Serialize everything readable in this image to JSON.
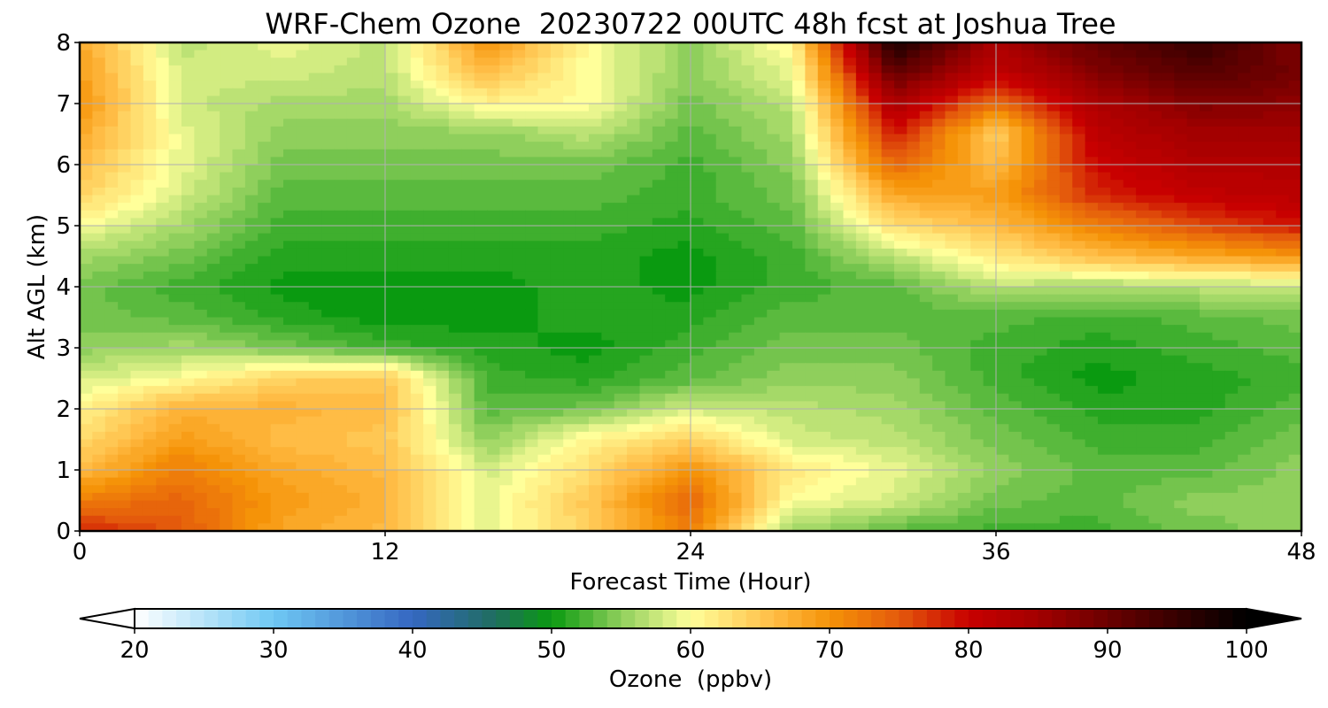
{
  "chart_data": {
    "type": "heatmap",
    "title": "WRF-Chem Ozone  20230722 00UTC 48h fcst at Joshua Tree",
    "xlabel": "Forecast Time (Hour)",
    "ylabel": "Alt AGL (km)",
    "xlim": [
      0,
      48
    ],
    "ylim": [
      0,
      8
    ],
    "xticks": [
      "0",
      "12",
      "24",
      "36",
      "48"
    ],
    "yticks": [
      "0",
      "1",
      "2",
      "3",
      "4",
      "5",
      "6",
      "7",
      "8"
    ],
    "grid": true,
    "x_hours": [
      0,
      4,
      8,
      12,
      16,
      20,
      24,
      28,
      32,
      36,
      40,
      44,
      48
    ],
    "y_km": [
      0,
      0.5,
      1,
      1.5,
      2,
      2.5,
      3,
      3.5,
      4,
      4.5,
      5,
      5.5,
      6,
      6.5,
      7,
      7.5,
      8
    ],
    "ozone_ppbv": [
      [
        78,
        75,
        68,
        66,
        59,
        64,
        72,
        56,
        53,
        52,
        52,
        54,
        55
      ],
      [
        72,
        74,
        69,
        67,
        59,
        65,
        74,
        60,
        58,
        54,
        53,
        55,
        55
      ],
      [
        66,
        72,
        68,
        66,
        58,
        63,
        70,
        62,
        59,
        55,
        53,
        53,
        55
      ],
      [
        63,
        69,
        66,
        65,
        55,
        61,
        64,
        58,
        57,
        54,
        52,
        52,
        54
      ],
      [
        61,
        67,
        67,
        66,
        53,
        54,
        58,
        57,
        56,
        53,
        51,
        51,
        53
      ],
      [
        58,
        60,
        64,
        65,
        52,
        51,
        53,
        55,
        55,
        52,
        50,
        51,
        52
      ],
      [
        55,
        56,
        54,
        52,
        51,
        50,
        52,
        54,
        54,
        52,
        51,
        52,
        53
      ],
      [
        54,
        53,
        51,
        50,
        50,
        51,
        51,
        53,
        53,
        53,
        52,
        53,
        54
      ],
      [
        54,
        52,
        50,
        50,
        50,
        51,
        50,
        52,
        53,
        57,
        56,
        57,
        57
      ],
      [
        56,
        54,
        51,
        51,
        51,
        51,
        50,
        52,
        57,
        62,
        66,
        68,
        70
      ],
      [
        60,
        56,
        52,
        52,
        52,
        52,
        51,
        53,
        63,
        66,
        72,
        76,
        79
      ],
      [
        64,
        58,
        53,
        53,
        53,
        53,
        52,
        54,
        68,
        69,
        78,
        81,
        82
      ],
      [
        66,
        59,
        54,
        54,
        54,
        54,
        52,
        55,
        74,
        66,
        80,
        83,
        83
      ],
      [
        68,
        59,
        55,
        55,
        55,
        57,
        53,
        56,
        79,
        64,
        82,
        85,
        85
      ],
      [
        70,
        58,
        56,
        56,
        61,
        60,
        54,
        57,
        84,
        73,
        84,
        88,
        87
      ],
      [
        69,
        58,
        58,
        57,
        66,
        60,
        55,
        59,
        91,
        81,
        88,
        92,
        89
      ],
      [
        68,
        57,
        59,
        57,
        70,
        60,
        55,
        61,
        98,
        84,
        91,
        95,
        88
      ]
    ]
  },
  "colorbar": {
    "label": "Ozone  (ppbv)",
    "min": 20,
    "max": 100,
    "step": 1,
    "ticks": [
      "20",
      "30",
      "40",
      "50",
      "60",
      "70",
      "80",
      "90",
      "100"
    ],
    "extend": "both",
    "color_stops": [
      {
        "v": 20,
        "c": "#ffffff"
      },
      {
        "v": 30,
        "c": "#6fc8f3"
      },
      {
        "v": 40,
        "c": "#3567c2"
      },
      {
        "v": 46,
        "c": "#1f6e5e"
      },
      {
        "v": 50,
        "c": "#0a9a10"
      },
      {
        "v": 55,
        "c": "#8fcf5c"
      },
      {
        "v": 60,
        "c": "#ffff9a"
      },
      {
        "v": 66,
        "c": "#ffbc45"
      },
      {
        "v": 70,
        "c": "#f59308"
      },
      {
        "v": 75,
        "c": "#e45a0c"
      },
      {
        "v": 80,
        "c": "#c80000"
      },
      {
        "v": 85,
        "c": "#a30000"
      },
      {
        "v": 90,
        "c": "#6b0000"
      },
      {
        "v": 100,
        "c": "#000000"
      }
    ]
  }
}
